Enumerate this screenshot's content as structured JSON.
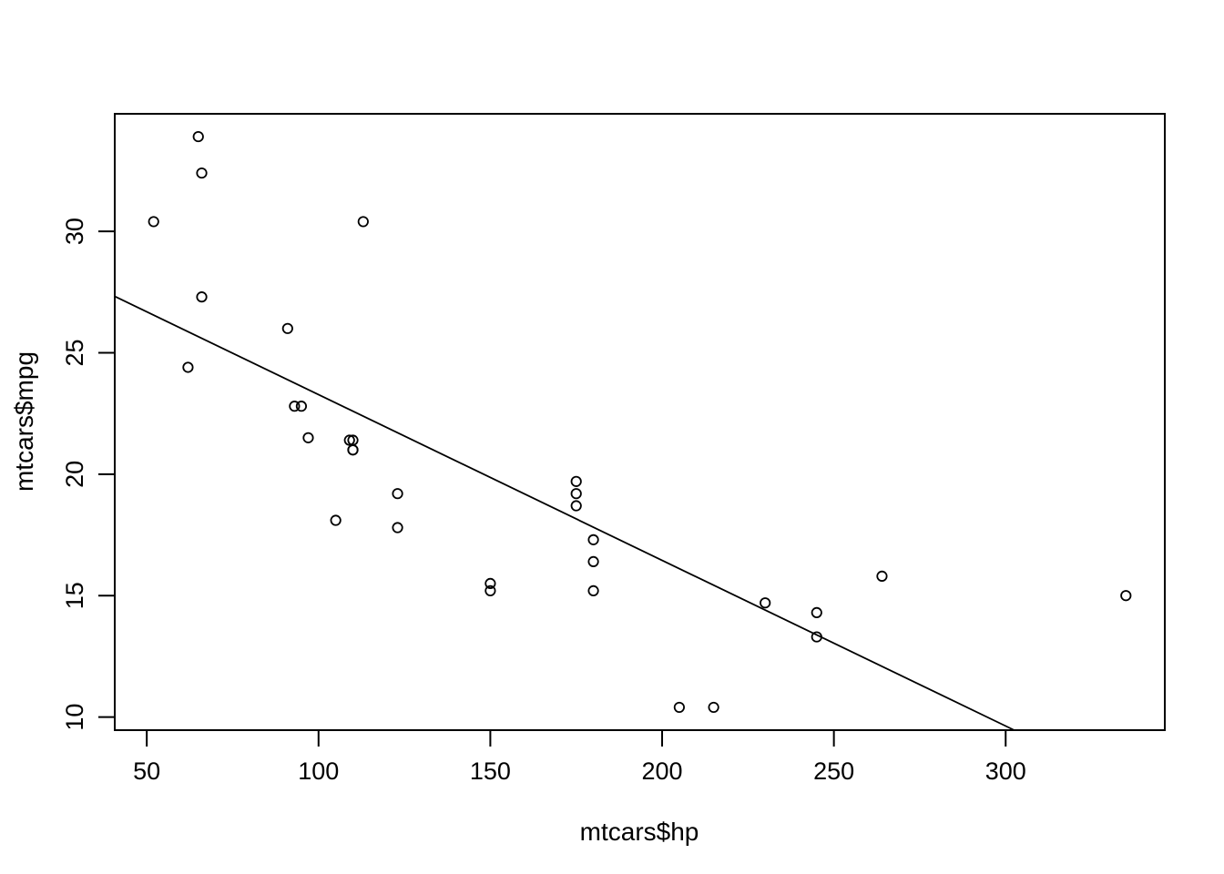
{
  "figure": {
    "background": "#ffffff",
    "foreground": "#000000"
  },
  "chart_data": {
    "type": "scatter",
    "title": "",
    "xlabel": "mtcars$hp",
    "ylabel": "mtcars$mpg",
    "x_ticks": [
      50,
      100,
      150,
      200,
      250,
      300
    ],
    "y_ticks": [
      10,
      15,
      20,
      25,
      30
    ],
    "xlim": [
      40.68,
      346.32
    ],
    "ylim": [
      9.46,
      34.84
    ],
    "grid": false,
    "legend": null,
    "marker": {
      "shape": "open-circle",
      "radius": 5.2,
      "stroke_width": 1.8
    },
    "x": [
      110,
      110,
      93,
      110,
      175,
      105,
      245,
      62,
      95,
      123,
      123,
      180,
      180,
      180,
      205,
      215,
      230,
      66,
      52,
      65,
      97,
      150,
      150,
      245,
      175,
      66,
      91,
      113,
      264,
      175,
      335,
      109
    ],
    "y": [
      21.0,
      21.0,
      22.8,
      21.4,
      18.7,
      18.1,
      14.3,
      24.4,
      22.8,
      19.2,
      17.8,
      16.4,
      17.3,
      15.2,
      10.4,
      10.4,
      14.7,
      32.4,
      30.4,
      33.9,
      21.5,
      15.5,
      15.2,
      13.3,
      19.2,
      27.3,
      26.0,
      30.4,
      15.8,
      19.7,
      15.0,
      21.4
    ],
    "regression_line": {
      "intercept": 30.0989,
      "slope": -0.0682283
    }
  }
}
